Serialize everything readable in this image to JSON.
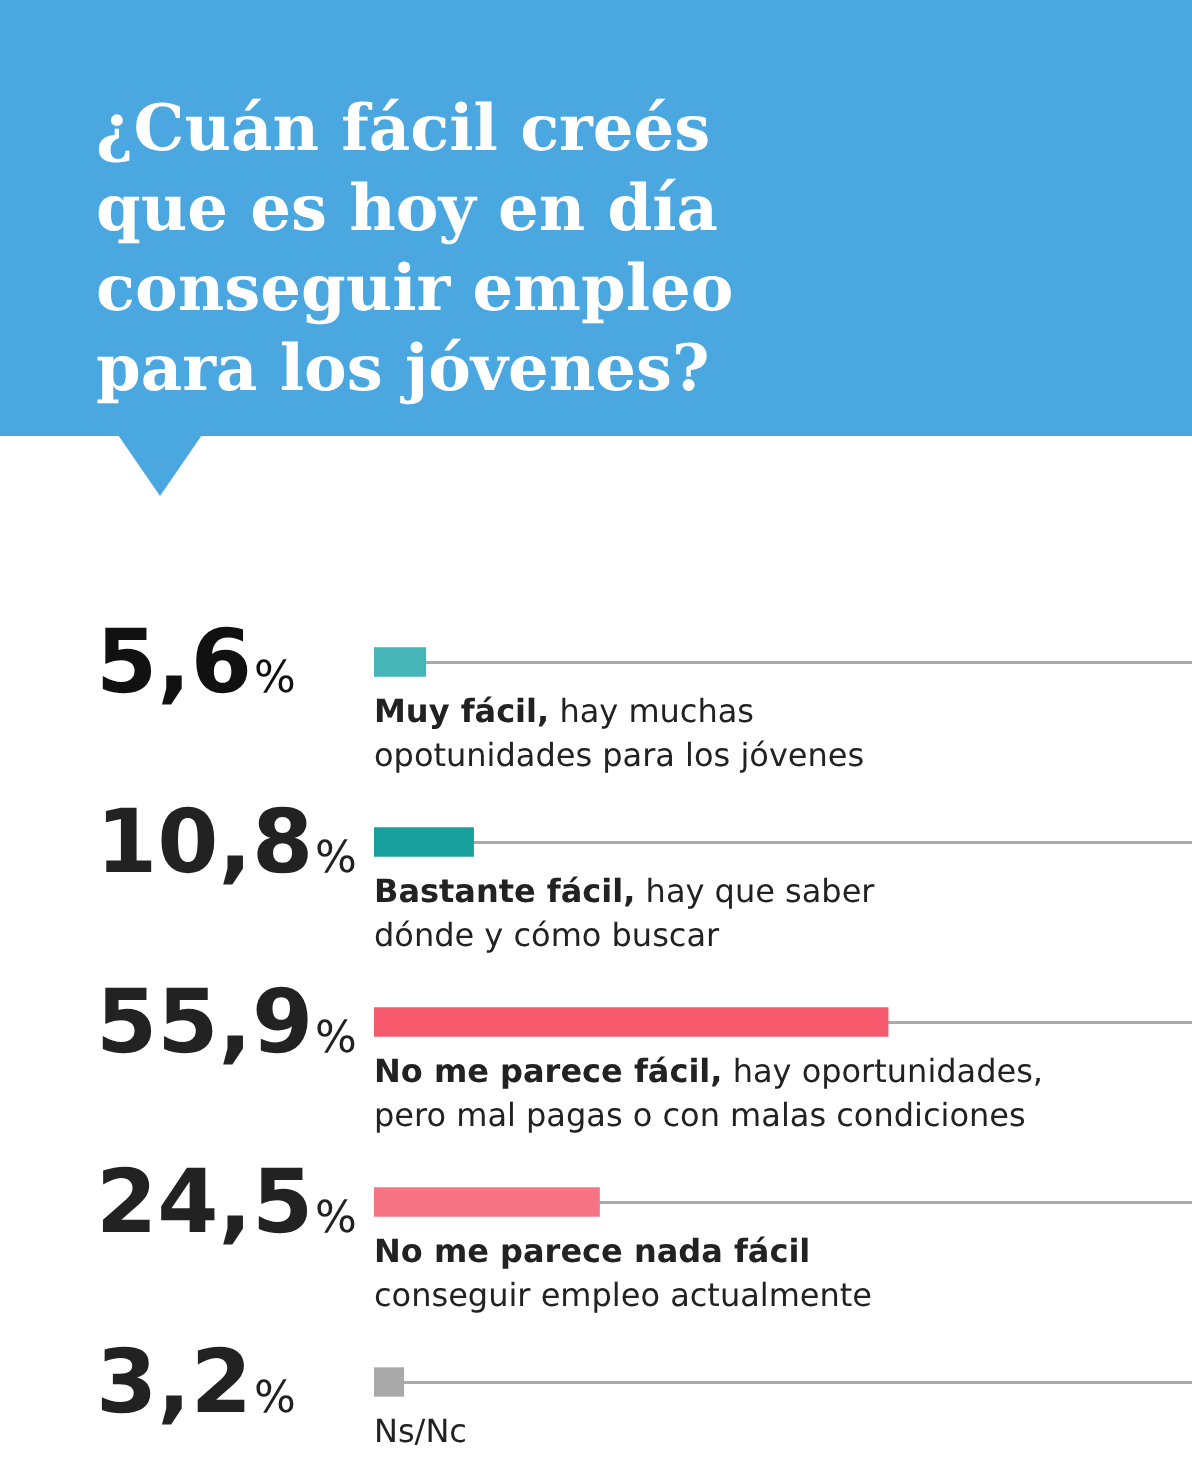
{
  "chart_data": {
    "type": "bar",
    "orientation": "horizontal",
    "title": "¿Cuán fácil creés que es hoy en día conseguir empleo para los jóvenes?",
    "categories": [
      "Muy fácil, hay muchas\nopotunidades para los jóvenes",
      "Bastante fácil, hay que saber\ndónde y cómo buscar",
      "No me parece fácil, hay oportunidades,\npero mal pagas o con malas condiciones",
      "No me parece nada fácil\nconseguir empleo actualmente",
      "Ns/Nc"
    ],
    "values": [
      5.6,
      10.8,
      55.9,
      24.5,
      3.2
    ],
    "colors": [
      "#45b5b8",
      "#17a09d",
      "#f65a6c",
      "#f77485",
      "#a9a9a9"
    ],
    "value_labels": [
      "5,6%",
      "10,8%",
      "55,9%",
      "24,5%",
      "3,2%"
    ],
    "xlim": [
      0,
      89
    ],
    "tick_labels": "y",
    "grid": "y",
    "legend": false
  }
}
